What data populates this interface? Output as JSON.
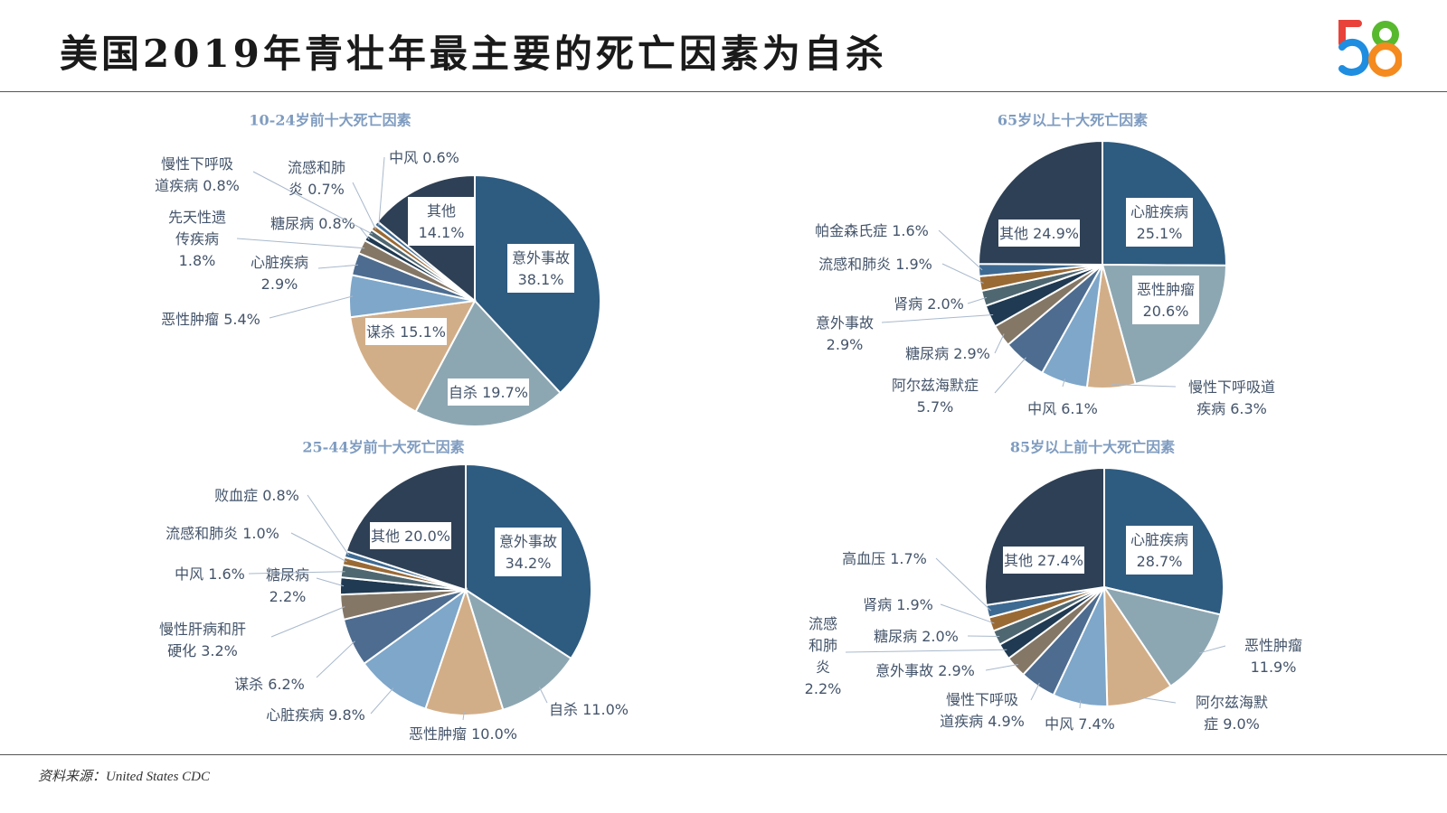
{
  "title": "美国2019年青壮年最主要的死亡因素为自杀",
  "source": "资料来源：United States CDC",
  "logo": {
    "text": "58",
    "colors": [
      "#e8423a",
      "#1f8de0",
      "#58b92e",
      "#f58a1f"
    ]
  },
  "colors": [
    "#2e5b80",
    "#8da7b2",
    "#d2ae88",
    "#7ea7ca",
    "#4d6c8f",
    "#857766",
    "#1f3a52",
    "#4f6770",
    "#9a6a35",
    "#3d6a92",
    "#2e4055"
  ],
  "chart_data": [
    {
      "type": "pie",
      "title": "10-24岁前十大死亡因素",
      "categories": [
        "意外事故",
        "自杀",
        "谋杀",
        "恶性肿瘤",
        "心脏疾病",
        "先天性遗传疾病",
        "糖尿病",
        "慢性下呼吸道疾病",
        "流感和肺炎",
        "中风",
        "其他"
      ],
      "values": [
        38.1,
        19.7,
        15.1,
        5.4,
        2.9,
        1.8,
        0.8,
        0.8,
        0.7,
        0.6,
        14.1
      ],
      "unit": "%"
    },
    {
      "type": "pie",
      "title": "65岁以上十大死亡因素",
      "categories": [
        "心脏疾病",
        "恶性肿瘤",
        "慢性下呼吸道疾病",
        "中风",
        "阿尔兹海默症",
        "糖尿病",
        "意外事故",
        "肾病",
        "流感和肺炎",
        "帕金森氏症",
        "其他"
      ],
      "values": [
        25.1,
        20.6,
        6.3,
        6.1,
        5.7,
        2.9,
        2.9,
        2.0,
        1.9,
        1.6,
        24.9
      ],
      "unit": "%"
    },
    {
      "type": "pie",
      "title": "25-44岁前十大死亡因素",
      "categories": [
        "意外事故",
        "自杀",
        "恶性肿瘤",
        "心脏疾病",
        "谋杀",
        "慢性肝病和肝硬化",
        "糖尿病",
        "中风",
        "流感和肺炎",
        "败血症",
        "其他"
      ],
      "values": [
        34.2,
        11.0,
        10.0,
        9.8,
        6.2,
        3.2,
        2.2,
        1.6,
        1.0,
        0.8,
        20.0
      ],
      "unit": "%"
    },
    {
      "type": "pie",
      "title": "85岁以上前十大死亡因素",
      "categories": [
        "心脏疾病",
        "恶性肿瘤",
        "阿尔兹海默症",
        "中风",
        "慢性下呼吸道疾病",
        "意外事故",
        "流感和肺炎",
        "糖尿病",
        "肾病",
        "高血压",
        "其他"
      ],
      "values": [
        28.7,
        11.9,
        9.0,
        7.4,
        4.9,
        2.9,
        2.2,
        2.0,
        1.9,
        1.7,
        27.4
      ],
      "unit": "%"
    }
  ]
}
